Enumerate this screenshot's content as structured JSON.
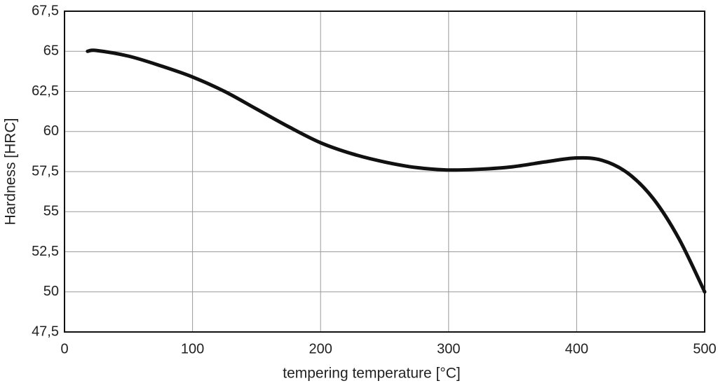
{
  "chart_data": {
    "type": "line",
    "xlabel": "tempering temperature [°C]",
    "ylabel": "Hardness [HRC]",
    "x": [
      18,
      25,
      50,
      75,
      100,
      125,
      150,
      175,
      200,
      225,
      250,
      275,
      300,
      325,
      350,
      375,
      400,
      420,
      440,
      460,
      480,
      500
    ],
    "series": [
      {
        "color": "#111111",
        "values": [
          65.0,
          65.05,
          64.7,
          64.1,
          63.4,
          62.5,
          61.4,
          60.3,
          59.3,
          58.6,
          58.1,
          57.75,
          57.6,
          57.65,
          57.8,
          58.1,
          58.35,
          58.2,
          57.4,
          55.8,
          53.3,
          50.0
        ]
      }
    ],
    "xlim": [
      0,
      500
    ],
    "xticks": [
      0,
      100,
      200,
      300,
      400,
      500
    ],
    "ylim": [
      47.5,
      67.5
    ],
    "yticks": [
      {
        "value": 47.5,
        "label": "47,5"
      },
      50,
      {
        "value": 52.5,
        "label": "52,5"
      },
      55,
      {
        "value": 57.5,
        "label": "57,5"
      },
      60,
      {
        "value": 62.5,
        "label": "62,5"
      },
      65,
      {
        "value": 67.5,
        "label": "67,5"
      }
    ],
    "grid": true
  }
}
